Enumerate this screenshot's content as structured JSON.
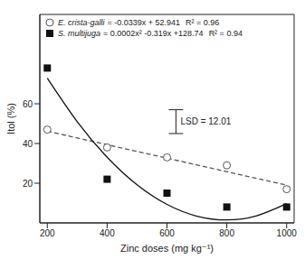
{
  "chart_data": {
    "type": "scatter",
    "x_label": "Zinc doses (mg kg⁻¹)",
    "y_label": "Itol (%)",
    "x": [
      200,
      400,
      600,
      800,
      1000
    ],
    "xlim": [
      175,
      1025
    ],
    "xticks": [
      200,
      400,
      600,
      800,
      1000
    ],
    "ylim": [
      0,
      105
    ],
    "yticks": [
      20,
      40,
      60
    ],
    "grid": false,
    "series": [
      {
        "name": "E. crista-galli",
        "equation": "= -0.0339x + 52.941",
        "r2": "R² = 0.96",
        "color": "#555555",
        "marker": "open_circle",
        "line_style": "dashed",
        "values": [
          47,
          38,
          33,
          29,
          17
        ],
        "fit": {
          "x": [
            200,
            400,
            600,
            800,
            1000
          ],
          "values": [
            46.2,
            39.4,
            32.6,
            25.8,
            19.0
          ]
        }
      },
      {
        "name": "S. multijuga",
        "equation": "= 0.0002x² -0.319x +128.74",
        "r2": "R² = 0.94",
        "color": "#111111",
        "marker": "square",
        "line_style": "solid",
        "values": [
          78,
          22,
          15,
          8,
          8
        ],
        "fit": {
          "x": [
            200,
            300,
            400,
            500,
            600,
            700,
            800,
            900,
            1000
          ],
          "values": [
            72.9,
            51.0,
            33.1,
            19.2,
            9.3,
            3.4,
            1.5,
            3.6,
            9.7
          ]
        }
      }
    ],
    "lsd": {
      "label": "LSD = 12.01",
      "x": 630,
      "y": 45,
      "value": 12.01
    }
  }
}
